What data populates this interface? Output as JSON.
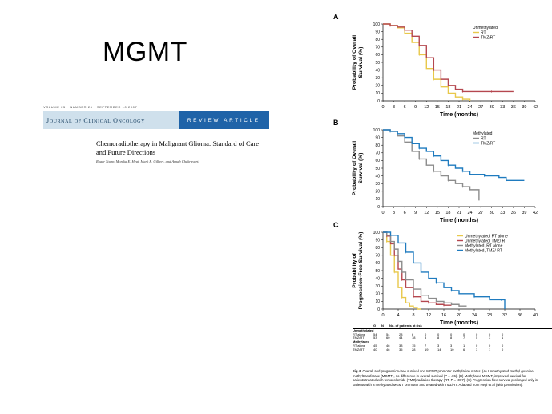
{
  "slide": {
    "title": "MGMT"
  },
  "journal": {
    "volume_line": "VOLUME 25 · NUMBER 26 · SEPTEMBER 10 2007",
    "name": "Journal of Clinical Oncology",
    "article_type": "REVIEW ARTICLE",
    "title": "Chemoradiotherapy in Malignant Glioma: Standard of Care and Future Directions",
    "authors": "Roger Stupp, Monika E. Hegi, Mark R. Gilbert, and Arnab Chakravarti"
  },
  "colors": {
    "rt": "#e8c84a",
    "tmz": "#b5474f",
    "rt_meth": "#8c8c8c",
    "tmz_meth": "#1f7bbf",
    "journal_blue": "#1f63a8"
  },
  "chart_data": [
    {
      "type": "line",
      "panel": "A",
      "title": "",
      "xlabel": "Time (months)",
      "ylabel": "Probability of Overall Survival (%)",
      "xlim": [
        0,
        42
      ],
      "ylim": [
        0,
        100
      ],
      "xticks": [
        0,
        3,
        6,
        9,
        12,
        15,
        18,
        21,
        24,
        27,
        30,
        33,
        36,
        39,
        42
      ],
      "yticks": [
        0,
        10,
        20,
        30,
        40,
        50,
        60,
        70,
        80,
        90,
        100
      ],
      "legend_title": "Unmethylated",
      "legend_position": "top-right",
      "series": [
        {
          "name": "RT",
          "color": "#e8c84a",
          "x": [
            0,
            2,
            4,
            6,
            8,
            10,
            12,
            14,
            16,
            18,
            20,
            22,
            24
          ],
          "y": [
            100,
            98,
            95,
            88,
            76,
            60,
            42,
            28,
            18,
            10,
            5,
            2,
            0
          ]
        },
        {
          "name": "TMZ/RT",
          "color": "#b5474f",
          "x": [
            0,
            2,
            4,
            6,
            8,
            10,
            12,
            14,
            16,
            18,
            20,
            22,
            24,
            30,
            36
          ],
          "y": [
            100,
            98,
            96,
            92,
            84,
            72,
            56,
            40,
            28,
            20,
            15,
            12,
            12,
            12,
            12
          ]
        }
      ]
    },
    {
      "type": "line",
      "panel": "B",
      "title": "",
      "xlabel": "Time (months)",
      "ylabel": "Probability of Overall Survival (%)",
      "xlim": [
        0,
        42
      ],
      "ylim": [
        0,
        100
      ],
      "xticks": [
        0,
        3,
        6,
        9,
        12,
        15,
        18,
        21,
        24,
        27,
        30,
        33,
        36,
        39,
        42
      ],
      "yticks": [
        0,
        10,
        20,
        30,
        40,
        50,
        60,
        70,
        80,
        90,
        100
      ],
      "legend_title": "Methylated",
      "legend_position": "top-right",
      "series": [
        {
          "name": "RT",
          "color": "#8c8c8c",
          "x": [
            0,
            2,
            4,
            6,
            8,
            10,
            12,
            14,
            16,
            18,
            20,
            22,
            24,
            26,
            26.5
          ],
          "y": [
            100,
            98,
            92,
            84,
            72,
            62,
            54,
            46,
            40,
            34,
            30,
            26,
            22,
            22,
            8
          ]
        },
        {
          "name": "TMZ/RT",
          "color": "#1f7bbf",
          "x": [
            0,
            2,
            4,
            6,
            8,
            10,
            12,
            14,
            16,
            18,
            20,
            22,
            24,
            28,
            32,
            34,
            39
          ],
          "y": [
            100,
            98,
            95,
            90,
            82,
            76,
            72,
            66,
            60,
            54,
            50,
            46,
            42,
            40,
            38,
            34,
            34
          ]
        }
      ]
    },
    {
      "type": "line",
      "panel": "C",
      "title": "",
      "xlabel": "Time (months)",
      "ylabel": "Probability of Progression-Free Survival (%)",
      "xlim": [
        0,
        40
      ],
      "ylim": [
        0,
        100
      ],
      "xticks": [
        0,
        4,
        8,
        12,
        16,
        20,
        24,
        28,
        32,
        36,
        40
      ],
      "yticks": [
        0,
        10,
        20,
        30,
        40,
        50,
        60,
        70,
        80,
        90,
        100
      ],
      "legend_position": "top-right",
      "series": [
        {
          "name": "Unmethylated, RT alone",
          "color": "#e8c84a",
          "x": [
            0,
            1,
            2,
            3,
            4,
            5,
            6,
            7,
            8,
            9,
            10
          ],
          "y": [
            100,
            88,
            70,
            48,
            28,
            15,
            8,
            4,
            2,
            0,
            0
          ]
        },
        {
          "name": "Unmethylated, TMZ/ RT",
          "color": "#b5474f",
          "x": [
            0,
            1,
            2,
            3,
            4,
            5,
            6,
            8,
            10,
            12,
            14,
            16,
            18
          ],
          "y": [
            100,
            95,
            85,
            70,
            52,
            38,
            28,
            16,
            10,
            8,
            6,
            5,
            5
          ]
        },
        {
          "name": "Methylated, RT alone",
          "color": "#8c8c8c",
          "x": [
            0,
            1,
            2,
            3,
            4,
            5,
            6,
            8,
            10,
            12,
            14,
            16,
            18,
            20,
            22
          ],
          "y": [
            100,
            96,
            88,
            78,
            62,
            48,
            38,
            26,
            18,
            14,
            10,
            8,
            6,
            4,
            4
          ]
        },
        {
          "name": "Methylated, TMZ/ RT",
          "color": "#1f7bbf",
          "x": [
            0,
            2,
            4,
            6,
            8,
            10,
            12,
            14,
            16,
            18,
            20,
            24,
            28,
            31,
            32
          ],
          "y": [
            100,
            96,
            86,
            74,
            60,
            48,
            40,
            34,
            28,
            24,
            20,
            16,
            12,
            12,
            0
          ]
        }
      ]
    }
  ],
  "risk_table": {
    "header": [
      "G",
      "N",
      "No. of patients at risk"
    ],
    "groups": [
      {
        "label": "Unmethylated",
        "rows": [
          {
            "arm": "RT alone",
            "values": [
              "54",
              "54",
              "28",
              "6",
              "0",
              "0",
              "0",
              "0",
              "0",
              "0",
              "0"
            ]
          },
          {
            "arm": "TMZ/RT",
            "values": [
              "53",
              "60",
              "44",
              "18",
              "8",
              "8",
              "8",
              "7",
              "5",
              "3",
              "1"
            ]
          }
        ]
      },
      {
        "label": "Methylated",
        "rows": [
          {
            "arm": "RT alone",
            "values": [
              "45",
              "46",
              "33",
              "15",
              "7",
              "3",
              "3",
              "1",
              "0",
              "0",
              "0"
            ]
          },
          {
            "arm": "TMZ/RT",
            "values": [
              "40",
              "46",
              "35",
              "28",
              "19",
              "14",
              "10",
              "6",
              "3",
              "1",
              "0"
            ]
          }
        ]
      }
    ]
  },
  "caption": {
    "label": "Fig 4.",
    "text": "Overall and progression-free survival and MGMT promoter methylation status. (A) Unmethylated methyl guanine methyltransferase (MGMT), no difference in overall survival (P = .06). (B) Methylated MGMT, improved survival for patients treated with temozolomide (TMZ)/radiation therapy (RT, P = .007). (C) Progression-free survival prolonged only in patients with a methylated MGMT promoter and treated with TMZ/RT. Adapted from Hegi et al (with permission)."
  }
}
